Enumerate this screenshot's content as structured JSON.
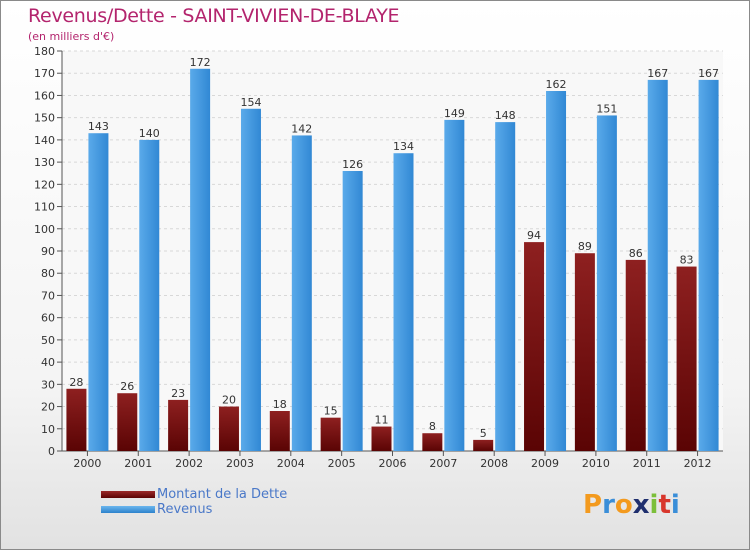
{
  "chart_data": {
    "type": "bar",
    "title": "Revenus/Dette - SAINT-VIVIEN-DE-BLAYE",
    "subtitle": "(en milliers d'€)",
    "categories": [
      "2000",
      "2001",
      "2002",
      "2003",
      "2004",
      "2005",
      "2006",
      "2007",
      "2008",
      "2009",
      "2010",
      "2011",
      "2012"
    ],
    "series": [
      {
        "name": "Montant de la Dette",
        "color": "#7a1010",
        "values": [
          28,
          26,
          23,
          20,
          18,
          15,
          11,
          8,
          5,
          94,
          89,
          86,
          83
        ]
      },
      {
        "name": "Revenus",
        "color": "#3d95dc",
        "values": [
          143,
          140,
          172,
          154,
          142,
          126,
          134,
          149,
          148,
          162,
          151,
          167,
          167
        ]
      }
    ],
    "ylim": [
      0,
      180
    ],
    "yticks": [
      0,
      10,
      20,
      30,
      40,
      50,
      60,
      70,
      80,
      90,
      100,
      110,
      120,
      130,
      140,
      150,
      160,
      170,
      180
    ],
    "grid": true,
    "legend_position": "bottom-left"
  },
  "logo": {
    "letters": [
      "P",
      "r",
      "o",
      "x",
      "i",
      "t",
      "i"
    ],
    "colors": [
      "#f39a1e",
      "#3a8ed8",
      "#f39a1e",
      "#1f2f6e",
      "#7cbf3a",
      "#d8362c",
      "#3a8ed8"
    ]
  }
}
